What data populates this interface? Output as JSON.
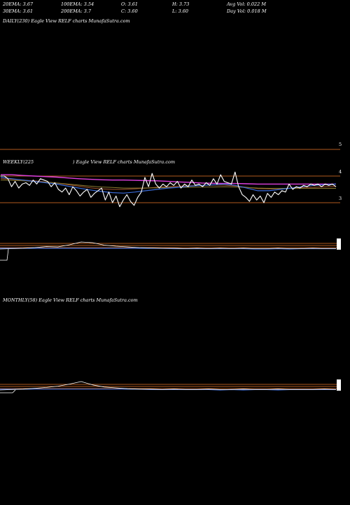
{
  "header": {
    "row1": [
      "20EMA: 3.67",
      "100EMA: 3.54",
      "O: 3.61",
      "H: 3.73",
      "Avg Vol: 0.022  M"
    ],
    "row2": [
      "30EMA: 3.61",
      "200EMA: 3.7",
      "C: 3.60",
      "L: 3.60",
      "Day Vol: 0.018 M"
    ]
  },
  "daily": {
    "title": "DAILY(230) Eagle  View  RELF charts MunafaSutra.com"
  },
  "weekly": {
    "title_left": "WEEKLY(225",
    "title_right": ") Eagle  View  RELF charts MunafaSutra.com",
    "price_labels": [
      "5",
      "4",
      "3"
    ]
  },
  "monthly": {
    "title": "MONTHLY(58) Eagle  View  RELF charts MunafaSutra.com"
  },
  "colors": {
    "price": "#ffffff",
    "ema_blue": "#3a6bd8",
    "ema_magenta": "#e040e0",
    "ema_brown": "#a0522d",
    "ema_olive": "#8a7a30",
    "level_line": "#b05a1e"
  },
  "chart_data": [
    {
      "type": "line",
      "panel": "weekly",
      "y_ticks": [
        5,
        4,
        3
      ],
      "ylim": [
        2.6,
        5.2
      ],
      "series": [
        {
          "values": [
            4.0,
            4.0,
            3.9,
            3.6,
            3.8,
            3.55,
            3.7,
            3.75,
            3.65,
            3.85,
            3.7,
            3.9,
            3.85,
            3.8,
            3.6,
            3.75,
            3.5,
            3.4,
            3.55,
            3.3,
            3.6,
            3.45,
            3.25,
            3.4,
            3.5,
            3.2,
            3.35,
            3.45,
            3.55,
            3.1,
            3.4,
            3.0,
            3.25,
            2.85,
            3.1,
            3.3,
            3.05,
            2.9,
            3.2,
            3.4,
            3.95,
            3.6,
            4.1,
            3.7,
            3.55,
            3.7,
            3.6,
            3.75,
            3.65,
            3.8,
            3.55,
            3.7,
            3.6,
            3.85,
            3.65,
            3.7,
            3.6,
            3.75,
            3.65,
            3.9,
            3.7,
            4.05,
            3.8,
            3.75,
            3.7,
            4.15,
            3.6,
            3.3,
            3.2,
            3.05,
            3.3,
            3.1,
            3.25,
            3.0,
            3.35,
            3.2,
            3.4,
            3.3,
            3.45,
            3.4,
            3.7,
            3.5,
            3.6,
            3.55,
            3.65,
            3.6,
            3.7,
            3.65,
            3.7,
            3.6,
            3.7,
            3.65,
            3.7,
            3.6
          ]
        },
        {
          "values": [
            3.95,
            3.9,
            3.85,
            3.8,
            3.75,
            3.7,
            3.62,
            3.55,
            3.48,
            3.42,
            3.38,
            3.36,
            3.4,
            3.45,
            3.5,
            3.55,
            3.58,
            3.62,
            3.65,
            3.67,
            3.7,
            3.65,
            3.55,
            3.45,
            3.45,
            3.5,
            3.55,
            3.6,
            3.65,
            3.68,
            3.7
          ]
        },
        {
          "values": [
            4.05,
            4.05,
            4.02,
            4.0,
            3.98,
            3.96,
            3.93,
            3.9,
            3.88,
            3.86,
            3.85,
            3.85,
            3.84,
            3.83,
            3.82,
            3.8,
            3.78,
            3.76,
            3.74,
            3.73,
            3.72,
            3.72,
            3.71,
            3.7,
            3.7,
            3.7,
            3.7,
            3.7,
            3.7,
            3.7,
            3.7
          ]
        },
        {
          "values": [
            3.9,
            3.88,
            3.85,
            3.82,
            3.78,
            3.74,
            3.68,
            3.62,
            3.56,
            3.52,
            3.5,
            3.5,
            3.52,
            3.55,
            3.58,
            3.6,
            3.62,
            3.64,
            3.65,
            3.66,
            3.66,
            3.63,
            3.58,
            3.53,
            3.52,
            3.53,
            3.55,
            3.57,
            3.58,
            3.6,
            3.61
          ]
        },
        {
          "values": [
            3.85,
            3.84,
            3.82,
            3.8,
            3.77,
            3.74,
            3.7,
            3.66,
            3.62,
            3.59,
            3.57,
            3.55,
            3.55,
            3.55,
            3.56,
            3.57,
            3.58,
            3.58,
            3.59,
            3.59,
            3.6,
            3.59,
            3.57,
            3.55,
            3.54,
            3.54,
            3.54,
            3.54,
            3.54,
            3.54,
            3.54
          ]
        }
      ]
    },
    {
      "type": "line",
      "panel": "weekly-volume-strip",
      "series": [
        {
          "values": [
            0,
            0.05,
            0.1,
            0.2,
            0.35,
            0.3,
            0.6,
            1.0,
            0.9,
            0.55,
            0.4,
            0.3,
            0.2,
            0.15,
            0.1,
            0.1,
            0.05,
            0.1,
            0.05,
            0.1,
            0.05,
            0.1,
            0.05,
            0.05,
            0.1,
            0.05,
            0.05,
            0.1,
            0.05,
            0.05
          ]
        },
        {
          "values": [
            0.1,
            0.1,
            0.1,
            0.1,
            0.1,
            0.1,
            0.1,
            0.1,
            0.1,
            0.1,
            0.1,
            0.1,
            0.1,
            0.1,
            0.1,
            0.05,
            0.05,
            0.05,
            0.05,
            0.05,
            0.05,
            0.05,
            0.0,
            0.0,
            0.05,
            0.0,
            0.05,
            0.05,
            0.05,
            0.05
          ]
        }
      ]
    },
    {
      "type": "line",
      "panel": "monthly",
      "series": [
        {
          "values": [
            0,
            0.05,
            0.1,
            0.2,
            0.3,
            0.45,
            0.7,
            1.0,
            0.6,
            0.35,
            0.25,
            0.15,
            0.1,
            0.1,
            0.05,
            0.1,
            0.05,
            0.05,
            0.1,
            0.05,
            0.05,
            0.1,
            0.05,
            0.05,
            0.1,
            0.05,
            0.05,
            0.05,
            0.1,
            0.05
          ]
        },
        {
          "values": [
            0.1,
            0.1,
            0.1,
            0.1,
            0.1,
            0.1,
            0.1,
            0.1,
            0.1,
            0.1,
            0.1,
            0.1,
            0.1,
            0.05,
            0.05,
            0.05,
            0.05,
            0.05,
            0.05,
            0.0,
            0.05,
            0.0,
            0.05,
            0.05,
            0.0,
            0.05,
            0.05,
            0.05,
            0.05,
            0.05
          ]
        }
      ]
    }
  ]
}
